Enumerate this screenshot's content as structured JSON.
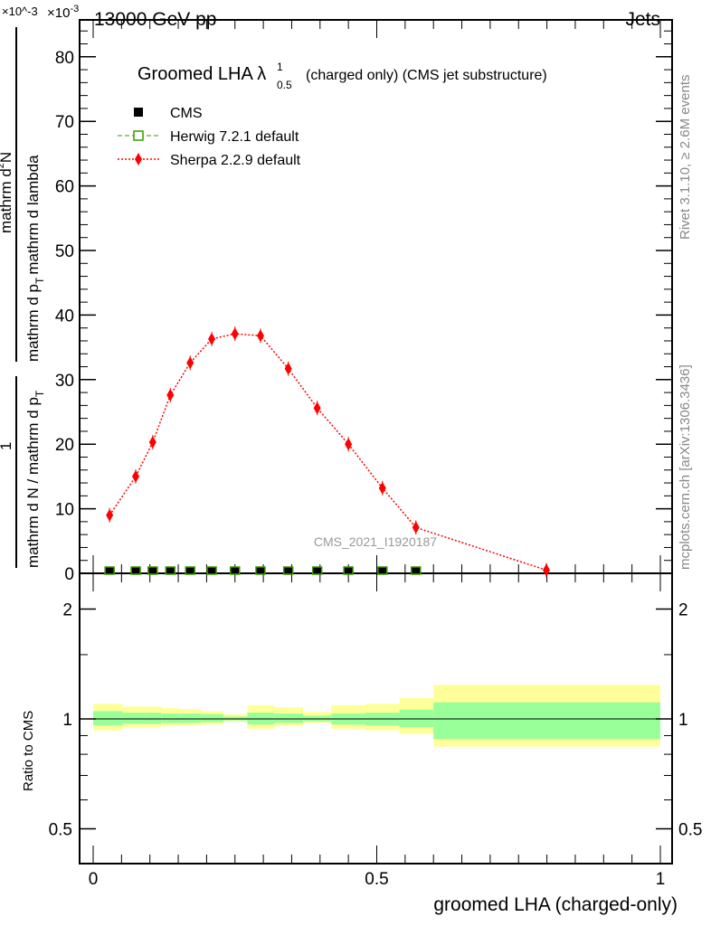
{
  "header": {
    "energy": "13000 GeV pp",
    "process": "Jets",
    "exp_base": "×10",
    "exp_power": "-3"
  },
  "side_text": {
    "rivet": "Rivet 3.1.10, ≥ 2.6M events",
    "mcplots": "mcplots.cern.ch [arXiv:1306.3436]"
  },
  "colors": {
    "cms": "#000000",
    "herwig": "#3a9a00",
    "sherpa": "#ff0000",
    "band_inner": "#99ff99",
    "band_outer": "#ffff99"
  },
  "chart_data": [
    {
      "type": "scatter",
      "title_main": "Groomed LHA λ",
      "title_sup": "1",
      "title_sub": "0.5",
      "title_rest": "(charged only) (CMS jet substructure)",
      "ylabel": {
        "num_left": "1",
        "den_left": "mathrm d N / mathrm d p",
        "den_left_sub": "T",
        "num_right": "mathrm d",
        "num_right_sup": "2",
        "num_right_tail": "N",
        "den_right": "mathrm d p",
        "den_right_sub": "T",
        "den_right_tail": "mathrm d lambda"
      },
      "xlabel": "groomed LHA (charged-only)",
      "xlim": [
        0,
        1
      ],
      "ylim": [
        0,
        85
      ],
      "y_scale_label": "×10^-3",
      "yticks": [
        "0",
        "10",
        "20",
        "30",
        "40",
        "50",
        "60",
        "70",
        "80"
      ],
      "watermark": "CMS_2021_I1920187",
      "legend": [
        "CMS",
        "Herwig 7.2.1 default",
        "Sherpa 2.2.9 default"
      ],
      "legend_position": "top-left",
      "x": [
        0.029,
        0.075,
        0.105,
        0.136,
        0.171,
        0.209,
        0.25,
        0.295,
        0.344,
        0.395,
        0.45,
        0.51,
        0.569,
        0.799
      ],
      "series": [
        {
          "name": "CMS",
          "values": [
            0,
            0,
            0,
            0,
            0,
            0,
            0,
            0,
            0,
            0,
            0,
            0,
            0,
            0
          ]
        },
        {
          "name": "Herwig 7.2.1 default",
          "values": [
            0,
            0,
            0,
            0,
            0,
            0,
            0,
            0,
            0,
            0,
            0,
            0,
            0,
            0
          ]
        },
        {
          "name": "Sherpa 2.2.9 default",
          "values": [
            9.0,
            15.0,
            20.3,
            27.6,
            32.6,
            36.3,
            37.1,
            36.8,
            31.7,
            25.6,
            20.0,
            13.2,
            7.1,
            0.5
          ]
        }
      ]
    },
    {
      "type": "area",
      "ylabel": "Ratio to CMS",
      "yscale": "log",
      "ylim": [
        0.4,
        2.4
      ],
      "yticks": [
        "0.5",
        "1",
        "2"
      ],
      "xticks": [
        "0",
        "0.5",
        "1"
      ],
      "bin_edges": [
        0,
        0.052,
        0.09,
        0.12,
        0.153,
        0.19,
        0.23,
        0.272,
        0.32,
        0.37,
        0.42,
        0.48,
        0.54,
        0.6,
        1.0
      ],
      "band_inner": {
        "lo": [
          0.96,
          0.97,
          0.97,
          0.975,
          0.975,
          0.98,
          0.99,
          0.965,
          0.975,
          0.985,
          0.965,
          0.96,
          0.95,
          0.88
        ],
        "hi": [
          1.05,
          1.04,
          1.04,
          1.035,
          1.035,
          1.03,
          1.015,
          1.04,
          1.035,
          1.02,
          1.035,
          1.04,
          1.06,
          1.11
        ]
      },
      "band_outer": {
        "lo": [
          0.93,
          0.945,
          0.95,
          0.955,
          0.96,
          0.965,
          0.985,
          0.94,
          0.955,
          0.975,
          0.94,
          0.93,
          0.91,
          0.84
        ],
        "hi": [
          1.1,
          1.08,
          1.08,
          1.07,
          1.065,
          1.05,
          1.03,
          1.09,
          1.075,
          1.045,
          1.09,
          1.1,
          1.14,
          1.24
        ]
      }
    }
  ]
}
